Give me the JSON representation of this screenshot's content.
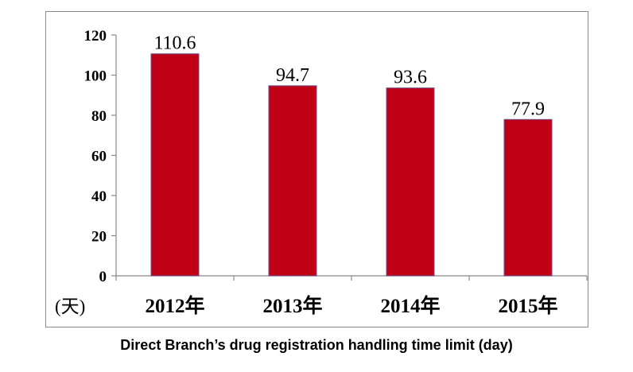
{
  "chart_data": {
    "type": "bar",
    "categories": [
      "2012年",
      "2013年",
      "2014年",
      "2015年"
    ],
    "values": [
      110.6,
      94.7,
      93.6,
      77.9
    ],
    "data_labels": [
      "110.6",
      "94.7",
      "93.6",
      "77.9"
    ],
    "ylabel": "(天)",
    "ylim": [
      0,
      120
    ],
    "yticks": [
      0,
      20,
      40,
      60,
      80,
      100,
      120
    ],
    "bar_color": "#c00014",
    "bar_border_color": "#6b4f8f",
    "grid": false,
    "legend": "none"
  },
  "caption": "Direct Branch’s drug registration handling time limit (day)"
}
